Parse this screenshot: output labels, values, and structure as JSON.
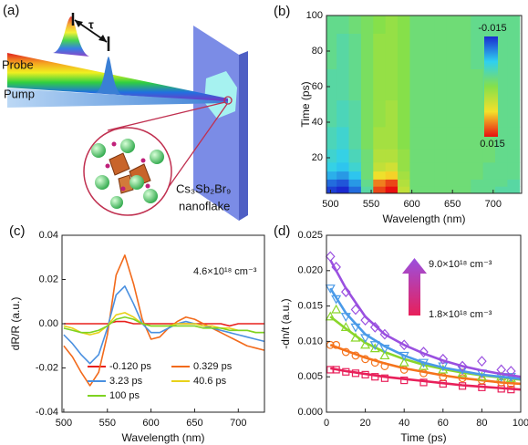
{
  "schematic": {
    "label": "(a)",
    "probe": "Probe",
    "pump": "Pump",
    "delay": "τ",
    "sample": "Cs₃Sb₂Br₉",
    "sample_form": "nanoflake"
  },
  "chart_data": [
    {
      "type": "heatmap",
      "label": "(b)",
      "x_label": "Wavelength (nm)",
      "y_label": "Time (ps)",
      "x": [
        500,
        515,
        530,
        545,
        560,
        575,
        590,
        605,
        620,
        635,
        650,
        665,
        680,
        695,
        710,
        725
      ],
      "y": [
        2,
        6,
        10,
        15,
        20,
        30,
        45,
        60,
        80,
        100
      ],
      "z": [
        [
          -0.014,
          -0.015,
          -0.012,
          -0.004,
          0.013,
          0.015,
          0.004,
          -0.002,
          -0.002,
          -0.002,
          -0.002,
          -0.002,
          -0.003,
          -0.003,
          -0.004,
          -0.004
        ],
        [
          -0.012,
          -0.013,
          -0.01,
          -0.003,
          0.011,
          0.013,
          0.003,
          -0.002,
          -0.002,
          -0.002,
          -0.002,
          -0.002,
          -0.003,
          -0.003,
          -0.003,
          -0.004
        ],
        [
          -0.009,
          -0.01,
          -0.008,
          -0.002,
          0.007,
          0.008,
          0.002,
          -0.002,
          -0.002,
          -0.002,
          -0.002,
          -0.002,
          -0.002,
          -0.003,
          -0.003,
          -0.003
        ],
        [
          -0.007,
          -0.008,
          -0.006,
          -0.002,
          0.004,
          0.005,
          0.001,
          -0.002,
          -0.002,
          -0.002,
          -0.002,
          -0.002,
          -0.002,
          -0.003,
          -0.003,
          -0.003
        ],
        [
          -0.006,
          -0.007,
          -0.005,
          -0.002,
          0.003,
          0.003,
          0.001,
          -0.002,
          -0.002,
          -0.002,
          -0.002,
          -0.002,
          -0.002,
          -0.002,
          -0.003,
          -0.003
        ],
        [
          -0.005,
          -0.006,
          -0.004,
          -0.001,
          0.002,
          0.002,
          0.0,
          -0.002,
          -0.002,
          -0.002,
          -0.002,
          -0.002,
          -0.002,
          -0.002,
          -0.003,
          -0.003
        ],
        [
          -0.004,
          -0.005,
          -0.004,
          -0.001,
          0.001,
          0.002,
          0.0,
          -0.002,
          -0.002,
          -0.002,
          -0.002,
          -0.002,
          -0.002,
          -0.002,
          -0.003,
          -0.003
        ],
        [
          -0.004,
          -0.004,
          -0.003,
          -0.001,
          0.001,
          0.001,
          0.0,
          -0.002,
          -0.002,
          -0.002,
          -0.002,
          -0.002,
          -0.002,
          -0.003,
          -0.003,
          -0.003
        ],
        [
          -0.003,
          -0.004,
          -0.003,
          -0.001,
          0.001,
          0.001,
          0.0,
          -0.002,
          -0.002,
          -0.002,
          -0.002,
          -0.002,
          -0.003,
          -0.003,
          -0.003,
          -0.003
        ],
        [
          -0.003,
          -0.003,
          -0.002,
          -0.001,
          0.0,
          0.001,
          0.0,
          -0.002,
          -0.002,
          -0.002,
          -0.002,
          -0.002,
          -0.003,
          -0.003,
          -0.003,
          -0.003
        ]
      ],
      "xlim": [
        495,
        735
      ],
      "xticks": [
        500,
        550,
        600,
        650,
        700
      ],
      "ylim": [
        0,
        100
      ],
      "yticks": [
        20,
        40,
        60,
        80,
        100
      ],
      "zlim": [
        -0.015,
        0.015
      ],
      "colormap": [
        "#1a2ad0",
        "#2fd0f0",
        "#86e04a",
        "#f5e02a",
        "#e81010"
      ]
    },
    {
      "type": "line",
      "label": "(c)",
      "x_label": "Wavelength (nm)",
      "y_label": "dR/R (a.u.)",
      "annotation": "4.6×10¹⁸ cm⁻³",
      "x": [
        500,
        510,
        520,
        530,
        540,
        550,
        560,
        570,
        580,
        590,
        600,
        610,
        620,
        630,
        640,
        650,
        660,
        670,
        680,
        690,
        700,
        710,
        720,
        730
      ],
      "series": [
        {
          "name": "-0.120 ps",
          "color": "#e8201c",
          "values": [
            0.0,
            0.0,
            0.0,
            0.0,
            0.0,
            0.0,
            0.001,
            0.001,
            0.0,
            0.0,
            0.0,
            0.0,
            0.0,
            0.0,
            0.0,
            0.0,
            0.0,
            0.0,
            0.0,
            -0.001,
            0.0,
            0.0,
            0.0,
            0.0
          ]
        },
        {
          "name": "0.329 ps",
          "color": "#f26a1b",
          "values": [
            -0.01,
            -0.015,
            -0.022,
            -0.028,
            -0.022,
            -0.005,
            0.022,
            0.031,
            0.018,
            0.002,
            -0.007,
            -0.006,
            -0.002,
            0.001,
            0.003,
            0.002,
            0.0,
            -0.002,
            -0.004,
            -0.006,
            -0.008,
            -0.01,
            -0.011,
            -0.012
          ]
        },
        {
          "name": "3.23 ps",
          "color": "#4a90e0",
          "values": [
            -0.005,
            -0.009,
            -0.014,
            -0.018,
            -0.014,
            -0.002,
            0.013,
            0.017,
            0.009,
            0.0,
            -0.004,
            -0.004,
            -0.002,
            0.0,
            0.001,
            0.0,
            -0.001,
            -0.002,
            -0.003,
            -0.004,
            -0.005,
            -0.006,
            -0.007,
            -0.008
          ]
        },
        {
          "name": "40.6 ps",
          "color": "#e8d21a",
          "values": [
            -0.001,
            -0.002,
            -0.004,
            -0.005,
            -0.004,
            -0.001,
            0.004,
            0.005,
            0.003,
            0.0,
            -0.001,
            -0.001,
            -0.001,
            0.0,
            0.0,
            0.0,
            -0.001,
            -0.001,
            -0.002,
            -0.002,
            -0.003,
            -0.003,
            -0.004,
            -0.004
          ]
        },
        {
          "name": "100 ps",
          "color": "#7ed321",
          "values": [
            -0.002,
            -0.003,
            -0.004,
            -0.004,
            -0.003,
            -0.001,
            0.002,
            0.003,
            0.002,
            0.0,
            -0.001,
            -0.001,
            -0.001,
            -0.001,
            -0.001,
            -0.001,
            -0.002,
            -0.002,
            -0.002,
            -0.003,
            -0.003,
            -0.003,
            -0.004,
            -0.004
          ]
        }
      ],
      "xlim": [
        498,
        730
      ],
      "xticks": [
        500,
        550,
        600,
        650,
        700
      ],
      "ylim": [
        -0.04,
        0.04
      ],
      "yticks": [
        -0.04,
        -0.02,
        {
          "value": 0,
          "label": "0.00"
        },
        0.02,
        0.04
      ]
    },
    {
      "type": "scatter",
      "label": "(d)",
      "x_label": "Time (ps)",
      "y_label": "-dn/t (a.u.)",
      "annotation_high": "9.0×10¹⁸ cm⁻³",
      "annotation_low": "1.8×10¹⁸ cm⁻³",
      "x": [
        2,
        5,
        10,
        15,
        20,
        25,
        30,
        40,
        50,
        60,
        70,
        80,
        90,
        95
      ],
      "fit_x": [
        2,
        10,
        20,
        30,
        40,
        50,
        60,
        70,
        80,
        90,
        100
      ],
      "series": [
        {
          "color": "#e8205a",
          "marker": "square",
          "values": [
            0.006,
            0.006,
            0.0057,
            0.0055,
            0.0053,
            0.005,
            0.0048,
            0.0045,
            0.0042,
            0.004,
            0.0037,
            0.0035,
            0.0033,
            0.0032
          ],
          "fit": [
            0.0062,
            0.0058,
            0.0054,
            0.005,
            0.0047,
            0.0044,
            0.0041,
            0.0038,
            0.0036,
            0.0034,
            0.0032
          ]
        },
        {
          "color": "#f5731c",
          "marker": "circle",
          "values": [
            0.0095,
            0.0095,
            0.0085,
            0.008,
            0.0075,
            0.007,
            0.0065,
            0.006,
            0.0055,
            0.005,
            0.0048,
            0.0045,
            0.0042,
            0.004
          ],
          "fit": [
            0.0095,
            0.0087,
            0.0077,
            0.0069,
            0.0062,
            0.0057,
            0.0052,
            0.0048,
            0.0045,
            0.0042,
            0.004
          ]
        },
        {
          "color": "#8ad62a",
          "marker": "triangle",
          "values": [
            0.0135,
            0.0145,
            0.012,
            0.0105,
            0.0095,
            0.009,
            0.008,
            0.007,
            0.0065,
            0.006,
            0.0055,
            0.005,
            0.005,
            0.0048
          ],
          "fit": [
            0.0135,
            0.0118,
            0.0098,
            0.0085,
            0.0075,
            0.0067,
            0.0061,
            0.0056,
            0.0052,
            0.0049,
            0.0046
          ]
        },
        {
          "color": "#4a9ae8",
          "marker": "triangle-down",
          "values": [
            0.0175,
            0.016,
            0.0135,
            0.012,
            0.0105,
            0.0095,
            0.009,
            0.008,
            0.007,
            0.0065,
            0.006,
            0.0055,
            0.005,
            0.005
          ],
          "fit": [
            0.0175,
            0.014,
            0.011,
            0.0093,
            0.008,
            0.007,
            0.0063,
            0.0058,
            0.0053,
            0.005,
            0.0047
          ]
        },
        {
          "color": "#9a50e0",
          "marker": "diamond",
          "values": [
            0.022,
            0.0205,
            0.017,
            0.0145,
            0.013,
            0.012,
            0.011,
            0.0095,
            0.0085,
            0.0075,
            0.0065,
            0.0072,
            0.006,
            0.0058
          ],
          "fit": [
            0.0215,
            0.0175,
            0.0135,
            0.011,
            0.0095,
            0.0083,
            0.0073,
            0.0065,
            0.0059,
            0.0054,
            0.005
          ]
        }
      ],
      "xlim": [
        0,
        100
      ],
      "xticks": [
        0,
        20,
        40,
        60,
        80,
        100
      ],
      "ylim": [
        0,
        0.025
      ],
      "yticks": [
        {
          "value": 0,
          "label": "0.000"
        },
        0.005,
        {
          "value": 0.01,
          "label": "0.010"
        },
        0.015,
        {
          "value": 0.02,
          "label": "0.020"
        },
        0.025
      ]
    }
  ]
}
